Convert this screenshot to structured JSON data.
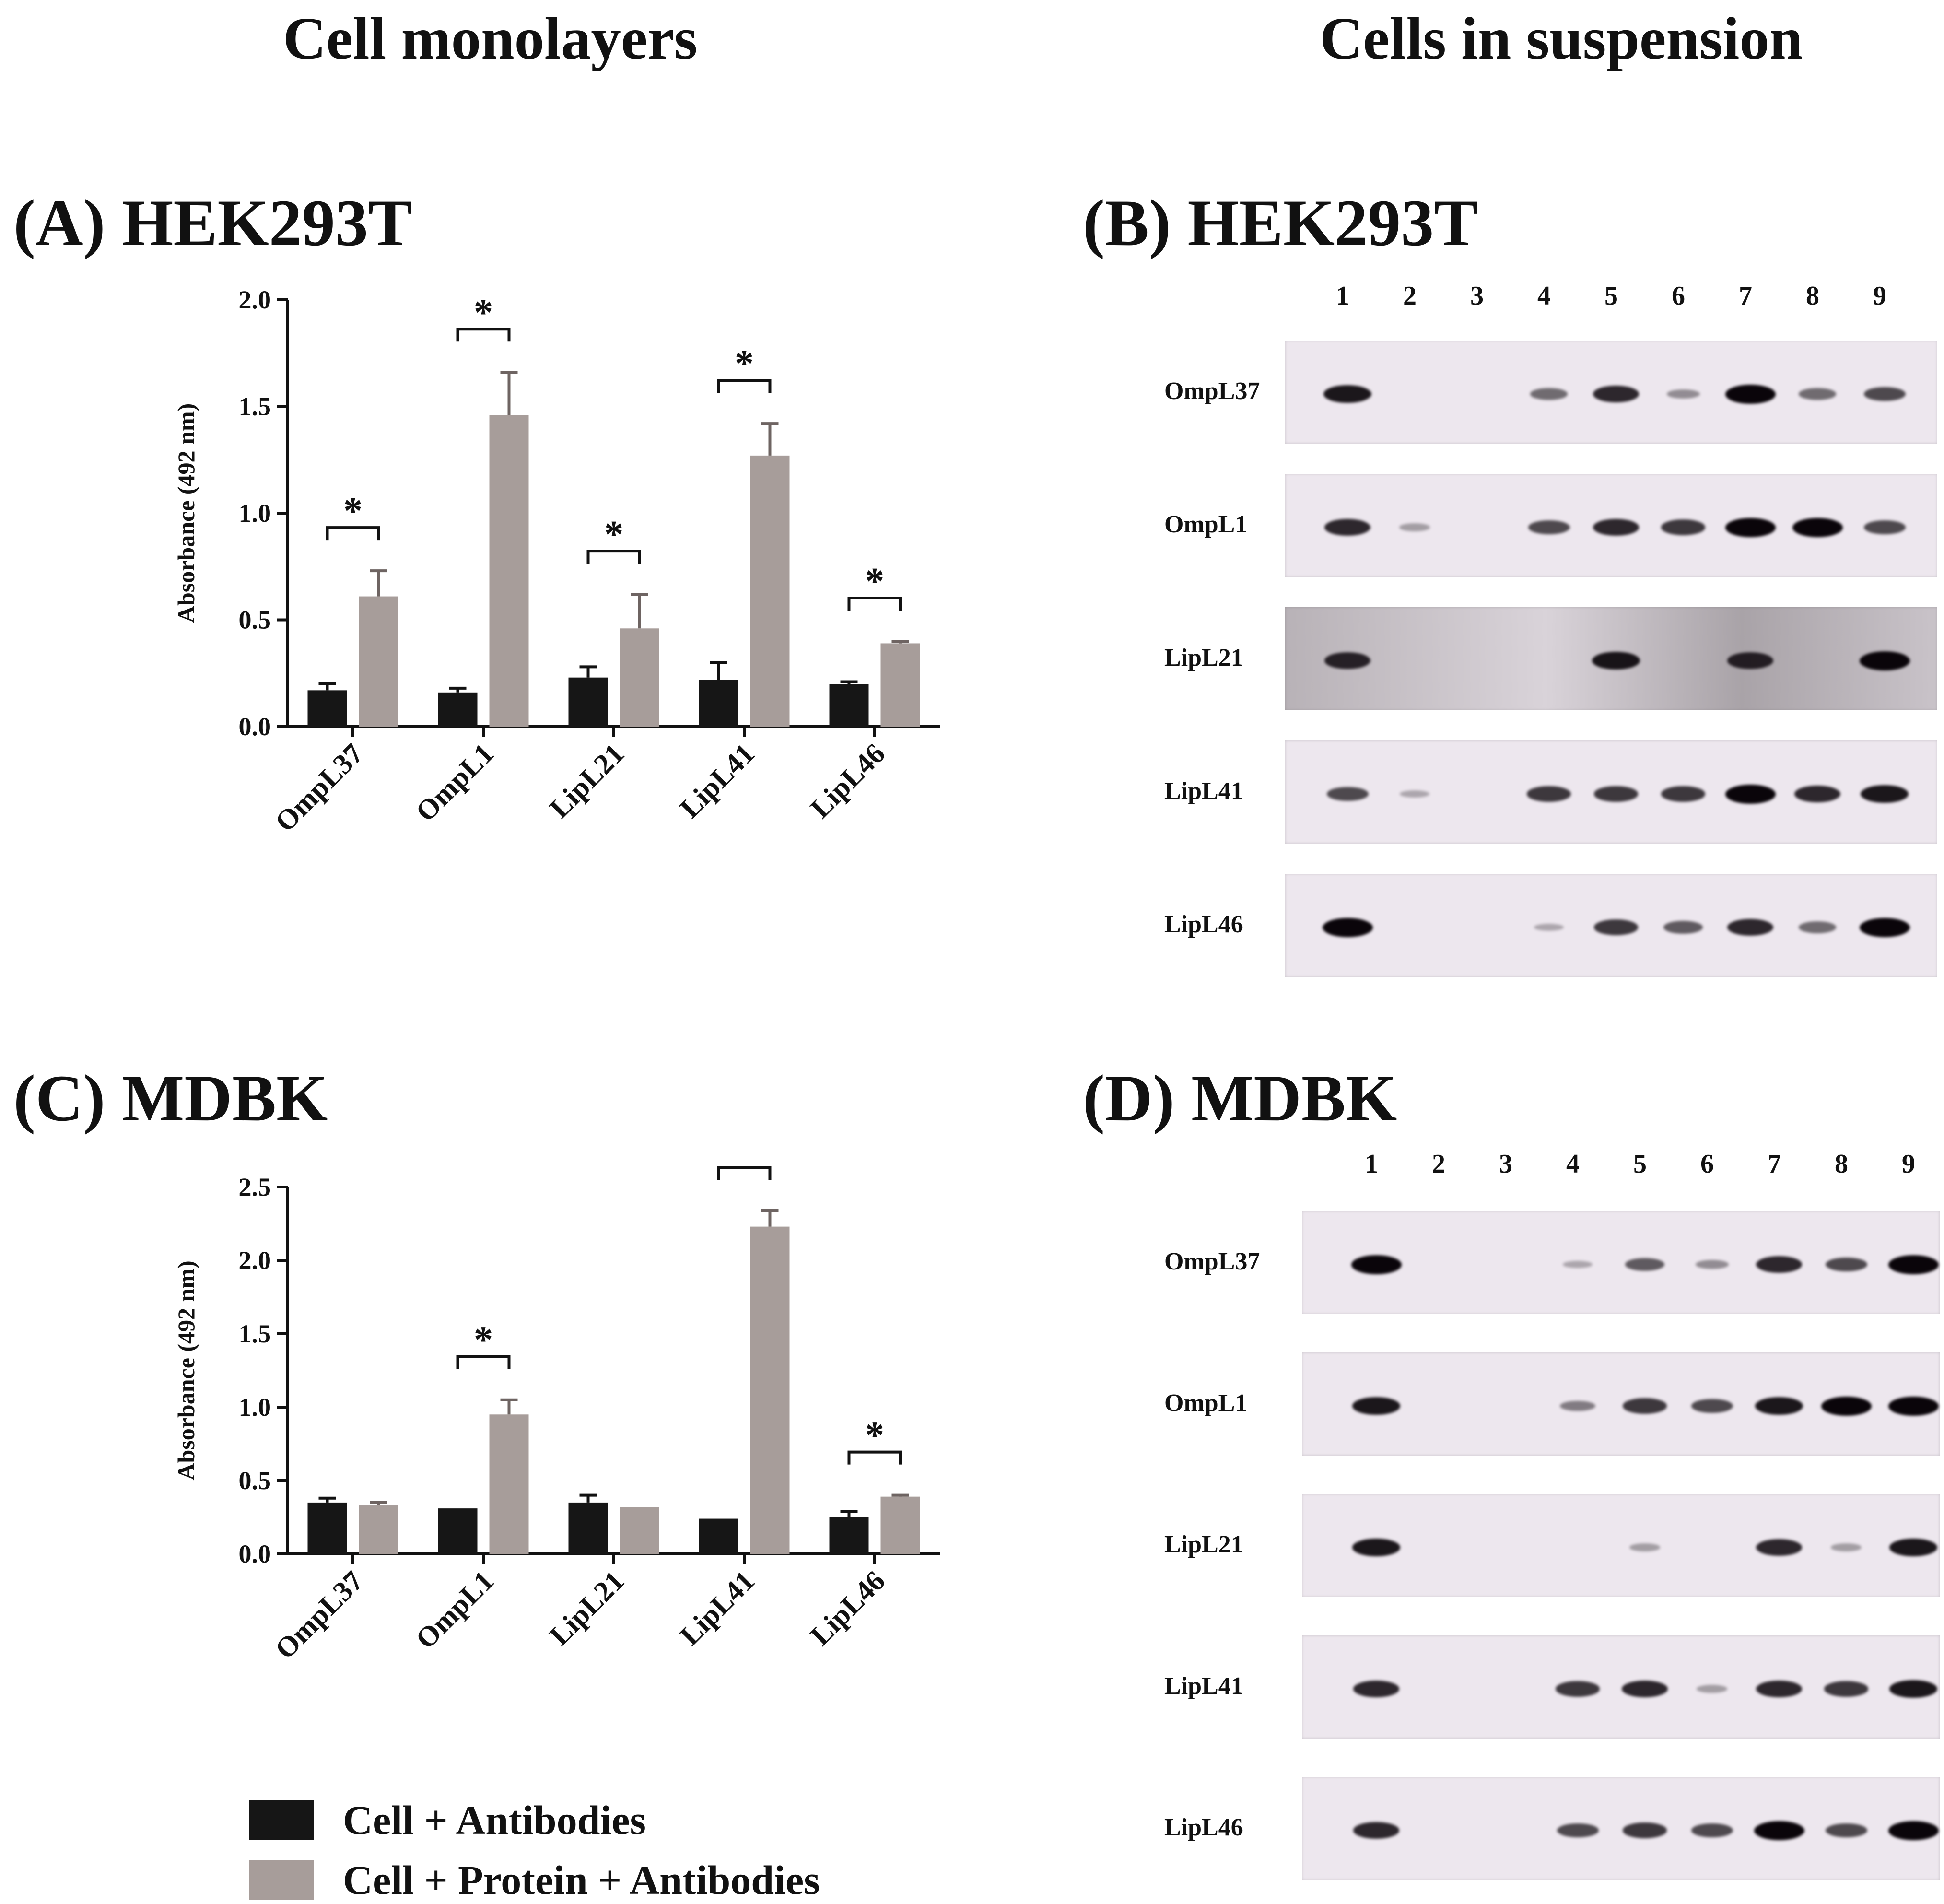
{
  "headers": {
    "left": "Cell monolayers",
    "right": "Cells in suspension"
  },
  "panels": {
    "a": "(A) HEK293T",
    "b": "(B) HEK293T",
    "c": "(C) MDBK",
    "d": "(D) MDBK"
  },
  "legend": {
    "series1": "Cell + Antibodies",
    "series2": "Cell + Protein + Antibodies"
  },
  "colors": {
    "series1": "#161616",
    "series2": "#a79d9a"
  },
  "chart_data": [
    {
      "type": "bar",
      "panel": "(A) HEK293T",
      "ylabel": "Absorbance (492 nm)",
      "ylim": [
        0,
        2.0
      ],
      "yticks": [
        "0.0",
        "0.5",
        "1.0",
        "1.5",
        "2.0"
      ],
      "yticks_values": [
        0,
        0.5,
        1.0,
        1.5,
        2.0
      ],
      "categories": [
        "OmpL37",
        "OmpL1",
        "LipL21",
        "LipL41",
        "LipL46"
      ],
      "series": [
        {
          "name": "Cell + Antibodies",
          "values": [
            0.17,
            0.16,
            0.23,
            0.22,
            0.2
          ],
          "errors": [
            0.03,
            0.02,
            0.05,
            0.08,
            0.01
          ]
        },
        {
          "name": "Cell + Protein + Antibodies",
          "values": [
            0.61,
            1.46,
            0.46,
            1.27,
            0.39
          ],
          "errors": [
            0.12,
            0.2,
            0.16,
            0.15,
            0.01
          ]
        }
      ],
      "significance": [
        "*",
        "*",
        "*",
        "*",
        "*"
      ]
    },
    {
      "type": "bar",
      "panel": "(C) MDBK",
      "ylabel": "Absorbance (492 nm)",
      "ylim": [
        0,
        2.5
      ],
      "yticks": [
        "0.0",
        "0.5",
        "1.0",
        "1.5",
        "2.0",
        "2.5"
      ],
      "yticks_values": [
        0,
        0.5,
        1.0,
        1.5,
        2.0,
        2.5
      ],
      "categories": [
        "OmpL37",
        "OmpL1",
        "LipL21",
        "LipL41",
        "LipL46"
      ],
      "series": [
        {
          "name": "Cell + Antibodies",
          "values": [
            0.35,
            0.31,
            0.35,
            0.24,
            0.25
          ],
          "errors": [
            0.03,
            0.0,
            0.05,
            0.0,
            0.04
          ]
        },
        {
          "name": "Cell + Protein + Antibodies",
          "values": [
            0.33,
            0.95,
            0.32,
            2.23,
            0.39
          ],
          "errors": [
            0.02,
            0.1,
            0.0,
            0.11,
            0.01
          ]
        }
      ],
      "significance": [
        "",
        "*",
        "",
        "*",
        "*"
      ]
    }
  ],
  "blots": {
    "lanes": [
      "1",
      "2",
      "3",
      "4",
      "5",
      "6",
      "7",
      "8",
      "9"
    ],
    "rows": [
      "OmpL37",
      "OmpL1",
      "LipL21",
      "LipL41",
      "LipL46"
    ]
  }
}
